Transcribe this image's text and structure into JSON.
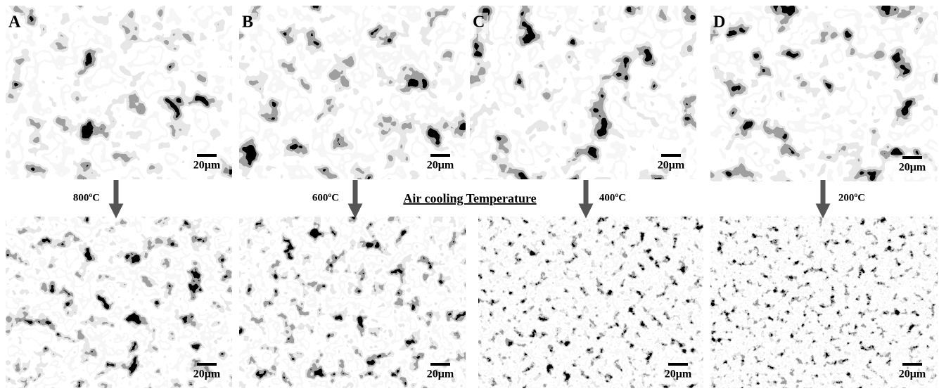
{
  "panels": [
    {
      "label": "A",
      "top_scale": "20μm",
      "temperature": "800ºC",
      "bottom_scale": "20μm"
    },
    {
      "label": "B",
      "top_scale": "20μm",
      "temperature": "600ºC",
      "bottom_scale": "20μm"
    },
    {
      "label": "C",
      "top_scale": "20μm",
      "temperature": "400ºC",
      "bottom_scale": "20μm"
    },
    {
      "label": "D",
      "top_scale": "20μm",
      "temperature": "200ºC",
      "bottom_scale": "20μm"
    }
  ],
  "center_label": "Air cooling Temperature"
}
